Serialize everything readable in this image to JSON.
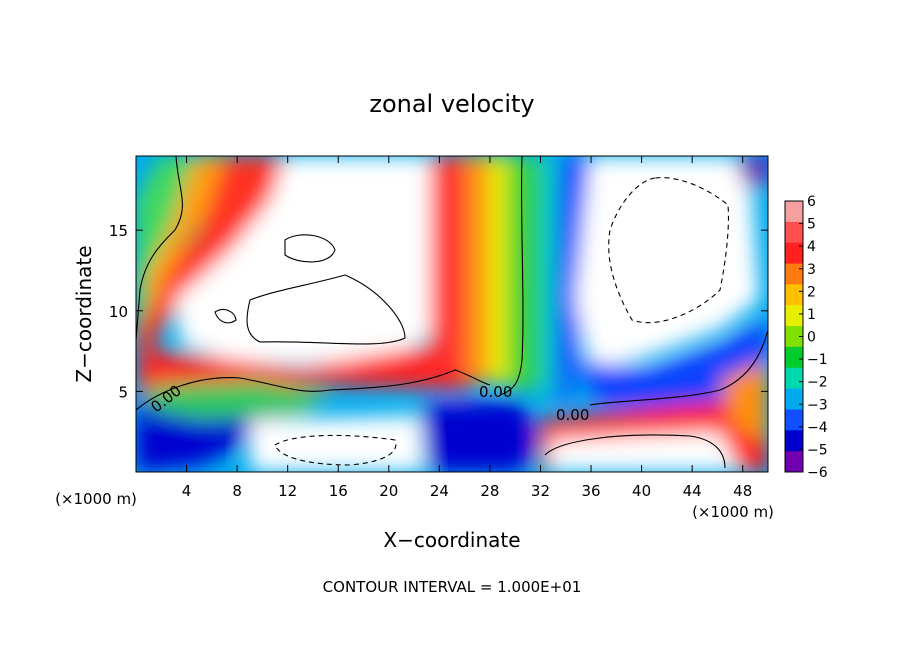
{
  "chart_data": {
    "type": "heatmap",
    "title": "zonal velocity",
    "xlabel": "X−coordinate",
    "ylabel": "Z−coordinate",
    "x_unit_label": "(×1000 m)",
    "x_unit_label_right": "(×1000 m)",
    "xlim": [
      0,
      50
    ],
    "ylim": [
      0,
      19.6
    ],
    "x_ticks": [
      4,
      8,
      12,
      16,
      20,
      24,
      28,
      32,
      36,
      40,
      44,
      48
    ],
    "y_ticks": [
      5,
      10,
      15
    ],
    "colorbar": {
      "ticks": [
        6,
        5,
        4,
        3,
        2,
        1,
        0,
        -1,
        -2,
        -3,
        -4,
        -5,
        -6
      ],
      "tick_labels": [
        "6",
        "5",
        "4",
        "3",
        "2",
        "1",
        "0",
        "−1",
        "−2",
        "−3",
        "−4",
        "−5",
        "−6"
      ],
      "colors": [
        "#f5a0a0",
        "#ff5050",
        "#ff2020",
        "#ff7a10",
        "#ffc000",
        "#e8ee00",
        "#80e000",
        "#00cc30",
        "#00d8b0",
        "#00aaee",
        "#1050ff",
        "#0000cc",
        "#7000b0"
      ],
      "range": [
        -6,
        6
      ]
    },
    "contour_labels": [
      "0.00",
      "0.00",
      "0.00"
    ],
    "saturated_color": "#ffffff",
    "footer": "CONTOUR INTERVAL = 1.000E+01"
  }
}
